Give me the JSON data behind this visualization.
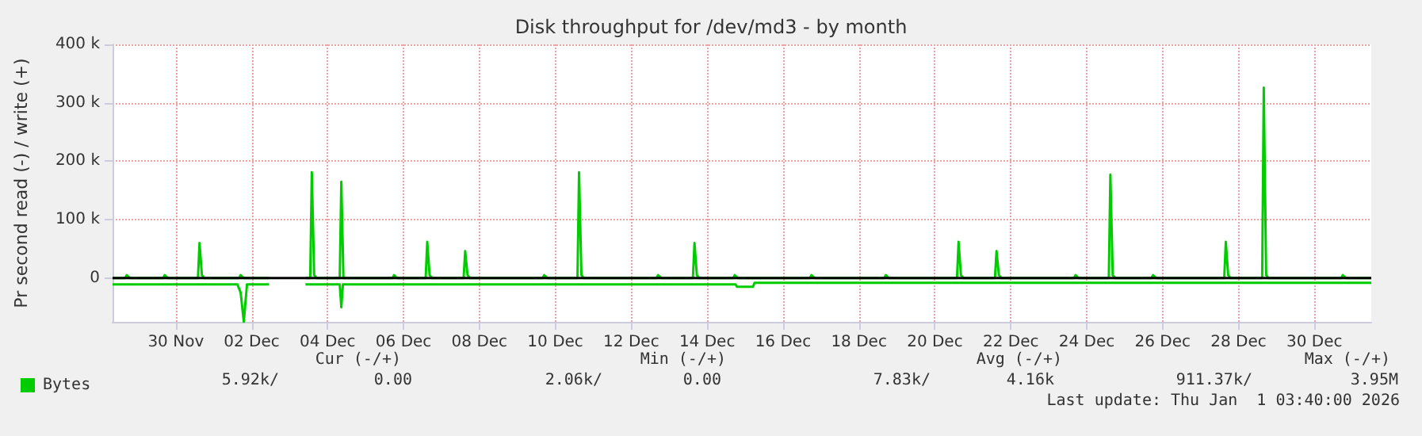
{
  "chart_data": {
    "type": "line",
    "title": "Disk throughput for /dev/md3 - by month",
    "ylabel": "Pr second read (-) / write (+)",
    "xlim": [
      "--11-28T20:00",
      "--12-31T23:59"
    ],
    "xticks": [
      {
        "value": "--11-30T12:00",
        "label": "30 Nov"
      },
      {
        "value": "--12-02T12:00",
        "label": "02 Dec"
      },
      {
        "value": "--12-04T12:00",
        "label": "04 Dec"
      },
      {
        "value": "--12-06T12:00",
        "label": "06 Dec"
      },
      {
        "value": "--12-08T12:00",
        "label": "08 Dec"
      },
      {
        "value": "--12-10T12:00",
        "label": "10 Dec"
      },
      {
        "value": "--12-12T12:00",
        "label": "12 Dec"
      },
      {
        "value": "--12-14T12:00",
        "label": "14 Dec"
      },
      {
        "value": "--12-16T12:00",
        "label": "16 Dec"
      },
      {
        "value": "--12-18T12:00",
        "label": "18 Dec"
      },
      {
        "value": "--12-20T12:00",
        "label": "20 Dec"
      },
      {
        "value": "--12-22T12:00",
        "label": "22 Dec"
      },
      {
        "value": "--12-24T12:00",
        "label": "24 Dec"
      },
      {
        "value": "--12-26T12:00",
        "label": "26 Dec"
      },
      {
        "value": "--12-28T12:00",
        "label": "28 Dec"
      },
      {
        "value": "--12-30T12:00",
        "label": "30 Dec"
      }
    ],
    "ylim": [
      -75000,
      400000
    ],
    "yticks": [
      0,
      {
        "value": 100000,
        "label": "100 k"
      },
      {
        "value": 200000,
        "label": "200 k"
      },
      {
        "value": 300000,
        "label": "300 k"
      },
      {
        "value": 400000,
        "label": "400 k"
      }
    ],
    "grid": true,
    "legend": "bottom left",
    "marker": "none",
    "line_style": "solid",
    "ref_lines": [
      {
        "axis": "y",
        "value": 0,
        "color": "#000000"
      }
    ],
    "series": [
      {
        "name": "Bytes",
        "color": "#00cc00",
        "x": [
          "--11-28T20:00",
          "--11-29T04:00",
          "--11-29T05:00",
          "--11-29T07:00",
          "--11-30T04:00",
          "--11-30T05:00",
          "--11-30T07:00",
          "--12-01T02:00",
          "--12-01T03:00",
          "--12-01T04:30",
          "--12-01T06:00",
          "--12-02T04:00",
          "--12-02T05:00",
          "--12-02T07:00",
          "--12-02T23:00",
          "--12-03T10:00",
          "--12-03T22:00",
          "--12-04T01:00",
          "--12-04T02:00",
          "--12-04T03:30",
          "--12-04T05:00",
          "--12-04T19:40",
          "--12-04T20:40",
          "--12-04T22:00",
          "--12-06T05:00",
          "--12-06T06:00",
          "--12-06T08:00",
          "--12-07T02:00",
          "--12-07T03:00",
          "--12-07T04:30",
          "--12-07T06:00",
          "--12-08T02:00",
          "--12-08T03:00",
          "--12-08T04:30",
          "--12-08T06:00",
          "--12-10T04:00",
          "--12-10T05:00",
          "--12-10T07:00",
          "--12-11T02:00",
          "--12-11T03:00",
          "--12-11T04:30",
          "--12-11T06:00",
          "--12-13T04:00",
          "--12-13T05:00",
          "--12-13T07:00",
          "--12-14T03:00",
          "--12-14T04:00",
          "--12-14T05:30",
          "--12-14T07:00",
          "--12-15T04:30",
          "--12-15T05:30",
          "--12-15T07:30",
          "--12-17T05:00",
          "--12-17T06:00",
          "--12-17T08:00",
          "--12-19T04:00",
          "--12-19T05:00",
          "--12-19T07:00",
          "--12-21T02:00",
          "--12-21T03:00",
          "--12-21T04:30",
          "--12-21T06:00",
          "--12-22T02:00",
          "--12-22T03:00",
          "--12-22T04:30",
          "--12-22T06:00",
          "--12-24T04:00",
          "--12-24T05:00",
          "--12-24T07:00",
          "--12-25T02:00",
          "--12-25T03:00",
          "--12-25T04:30",
          "--12-25T06:00",
          "--12-26T05:00",
          "--12-26T06:00",
          "--12-26T08:00",
          "--12-28T03:00",
          "--12-28T04:00",
          "--12-28T05:30",
          "--12-28T07:00",
          "--12-29T03:00",
          "--12-29T04:00",
          "--12-29T05:30",
          "--12-29T07:00",
          "--12-31T05:00",
          "--12-31T06:00",
          "--12-31T08:00",
          "--12-31T23:59"
        ],
        "values": [
          0,
          0,
          5000,
          0,
          0,
          5000,
          0,
          0,
          60000,
          5000,
          0,
          0,
          5000,
          0,
          0,
          null,
          0,
          0,
          181000,
          5000,
          0,
          0,
          165000,
          0,
          0,
          5000,
          0,
          0,
          62000,
          5000,
          0,
          0,
          46000,
          5000,
          0,
          0,
          5000,
          0,
          0,
          181000,
          5000,
          0,
          0,
          5000,
          0,
          0,
          60000,
          5000,
          0,
          0,
          5000,
          0,
          0,
          5000,
          0,
          0,
          5000,
          0,
          0,
          62000,
          5000,
          0,
          0,
          46000,
          5000,
          0,
          0,
          5000,
          0,
          0,
          177000,
          5000,
          0,
          0,
          5000,
          0,
          0,
          62000,
          5000,
          0,
          0,
          326000,
          5000,
          0,
          0,
          5000,
          0,
          0
        ]
      },
      {
        "color": "#00cc00",
        "x": [
          "--11-28T20:00",
          "--12-02T03:00",
          "--12-02T05:00",
          "--12-02T07:00",
          "--12-02T09:00",
          "--12-02T23:00",
          "--12-03T10:00",
          "--12-03T22:00",
          "--12-04T19:40",
          "--12-04T20:40",
          "--12-04T21:40",
          "--12-15T06:00",
          "--12-15T07:00",
          "--12-15T17:00",
          "--12-15T18:00",
          "--12-31T23:59"
        ],
        "values": [
          -11000,
          -11000,
          -25000,
          -75000,
          -11000,
          -11000,
          null,
          -11000,
          -11000,
          -50000,
          -11000,
          -11000,
          -15000,
          -15000,
          -8000,
          -8000
        ]
      }
    ],
    "annotations": [
      "Cur (-/+)",
      "Min (-/+)",
      "Avg (-/+)",
      "Max (-/+)",
      "5.92k/",
      "0.00",
      "2.06k/",
      "0.00",
      "7.83k/",
      "4.16k",
      "911.37k/",
      "3.95M",
      "Last update: Thu Jan  1 03:40:00 2026"
    ]
  }
}
